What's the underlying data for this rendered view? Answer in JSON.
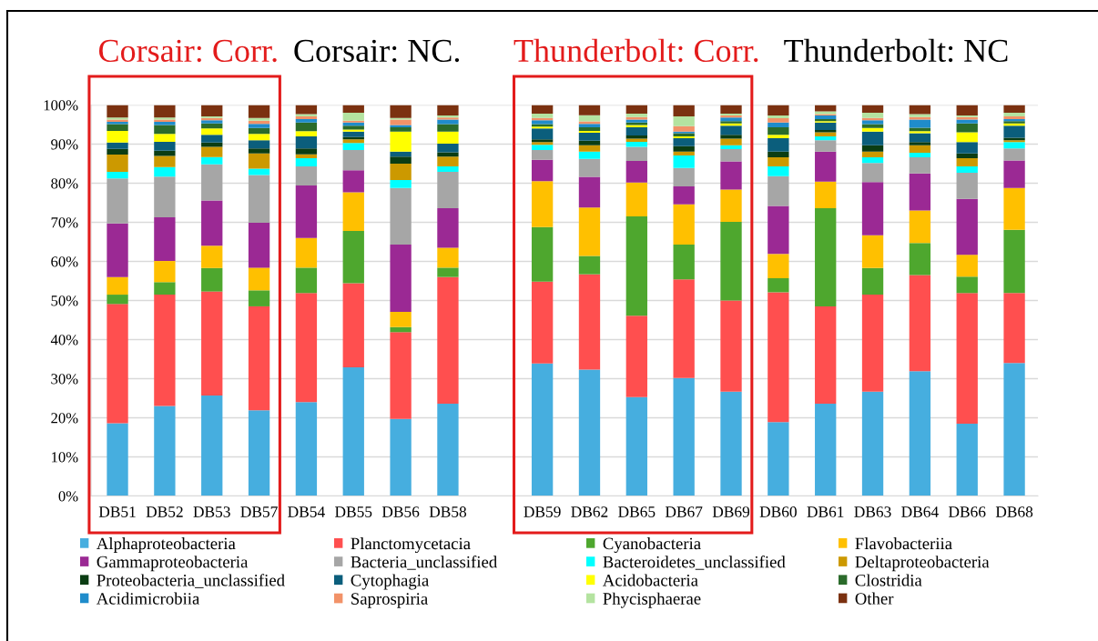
{
  "chart_data": {
    "type": "bar",
    "stacked": true,
    "categories": [
      "DB51",
      "DB52",
      "DB53",
      "DB57",
      "DB54",
      "DB55",
      "DB56",
      "DB58",
      null,
      "DB59",
      "DB62",
      "DB65",
      "DB67",
      "DB69",
      "DB60",
      "DB61",
      "DB63",
      "DB64",
      "DB66",
      "DB68"
    ],
    "series": [
      {
        "name": "Alphaproteobacteria",
        "color": "#46aedf",
        "values": [
          18.6,
          23.0,
          25.7,
          21.9,
          24.0,
          32.9,
          19.7,
          23.6,
          null,
          33.9,
          32.3,
          25.3,
          30.2,
          26.7,
          18.9,
          23.6,
          26.7,
          31.9,
          18.5,
          34.0
        ]
      },
      {
        "name": "Planctomycetacia",
        "color": "#ff4f4f",
        "values": [
          30.5,
          28.5,
          26.6,
          26.6,
          27.9,
          21.5,
          22.2,
          32.4,
          null,
          20.9,
          24.4,
          20.8,
          25.2,
          23.3,
          33.2,
          24.9,
          24.8,
          24.6,
          33.4,
          17.9
        ]
      },
      {
        "name": "Cyanobacteria",
        "color": "#4ea72e",
        "values": [
          2.4,
          3.2,
          6.0,
          4.1,
          6.5,
          13.4,
          1.3,
          2.4,
          null,
          14.0,
          4.7,
          25.4,
          8.9,
          20.1,
          3.6,
          25.1,
          6.8,
          8.2,
          4.2,
          16.2
        ]
      },
      {
        "name": "Flavobacteriia",
        "color": "#ffc000",
        "values": [
          4.5,
          5.4,
          5.7,
          5.8,
          7.6,
          9.9,
          3.9,
          5.1,
          null,
          11.7,
          12.4,
          8.7,
          10.3,
          8.3,
          6.2,
          6.8,
          8.4,
          8.3,
          5.6,
          10.7
        ]
      },
      {
        "name": "Gammaproteobacteria",
        "color": "#9b2994",
        "values": [
          13.7,
          11.2,
          11.6,
          11.5,
          13.4,
          5.6,
          17.2,
          10.1,
          null,
          5.5,
          7.8,
          5.5,
          4.6,
          7.2,
          12.3,
          7.7,
          13.6,
          9.5,
          14.3,
          7.0
        ]
      },
      {
        "name": "Bacteria_unclassified",
        "color": "#a6a6a6",
        "values": [
          11.5,
          10.4,
          9.2,
          12.2,
          4.9,
          5.2,
          14.5,
          9.3,
          null,
          2.5,
          4.6,
          3.6,
          4.7,
          3.1,
          7.6,
          2.9,
          4.9,
          4.1,
          6.7,
          3.1
        ]
      },
      {
        "name": "Bacteroidetes_unclassified",
        "color": "#00ffff",
        "values": [
          1.7,
          2.4,
          1.9,
          1.6,
          2.1,
          1.8,
          2.0,
          1.4,
          null,
          1.3,
          1.9,
          1.3,
          3.2,
          1.0,
          2.5,
          1.0,
          1.4,
          1.2,
          1.6,
          1.6
        ]
      },
      {
        "name": "Deltaproteobacteria",
        "color": "#cc9900",
        "values": [
          4.4,
          2.9,
          2.6,
          3.9,
          1.0,
          0.9,
          4.2,
          2.5,
          null,
          0.7,
          1.6,
          0.8,
          1.0,
          1.7,
          2.3,
          1.0,
          1.5,
          1.9,
          2.1,
          0.5
        ]
      },
      {
        "name": "Proteobacteria_unclassified",
        "color": "#0b3d13",
        "values": [
          1.5,
          1.3,
          1.1,
          1.3,
          1.5,
          0.6,
          1.8,
          1.1,
          null,
          0.7,
          1.2,
          0.8,
          1.4,
          1.0,
          1.5,
          0.6,
          1.6,
          0.8,
          1.2,
          0.6
        ]
      },
      {
        "name": "Cytophagia",
        "color": "#0b5e7c",
        "values": [
          1.6,
          2.3,
          2.0,
          2.1,
          3.1,
          1.4,
          1.3,
          2.2,
          null,
          2.8,
          2.0,
          2.1,
          2.0,
          2.3,
          3.4,
          1.9,
          3.5,
          2.3,
          2.9,
          3.1
        ]
      },
      {
        "name": "Acidobacteria",
        "color": "#ffff00",
        "values": [
          3.0,
          2.0,
          1.6,
          1.6,
          1.3,
          0.5,
          5.1,
          3.1,
          null,
          0.5,
          0.5,
          0.6,
          0.5,
          0.6,
          0.9,
          0.4,
          0.9,
          0.5,
          2.5,
          0.6
        ]
      },
      {
        "name": "Clostridia",
        "color": "#2b6b2b",
        "values": [
          1.7,
          2.3,
          1.3,
          1.5,
          2.2,
          1.0,
          1.1,
          1.9,
          null,
          0.6,
          0.9,
          0.6,
          0.8,
          0.6,
          1.9,
          0.5,
          1.0,
          0.9,
          2.3,
          0.6
        ]
      },
      {
        "name": "Acidimicrobiia",
        "color": "#1f8ccb",
        "values": [
          0.6,
          0.8,
          0.8,
          1.1,
          0.9,
          0.8,
          0.6,
          1.2,
          null,
          1.0,
          0.9,
          0.8,
          0.4,
          0.9,
          1.2,
          0.9,
          1.0,
          2.1,
          1.0,
          0.5
        ]
      },
      {
        "name": "Saprospiria",
        "color": "#f29268",
        "values": [
          0.6,
          0.6,
          0.6,
          0.8,
          0.7,
          0.5,
          1.4,
          0.5,
          null,
          0.6,
          0.6,
          0.6,
          1.4,
          0.5,
          1.1,
          0.4,
          0.6,
          0.6,
          0.6,
          0.7
        ]
      },
      {
        "name": "Phycisphaerae",
        "color": "#b4e3a0",
        "values": [
          0.5,
          0.5,
          0.4,
          0.7,
          0.6,
          2.0,
          0.4,
          0.5,
          null,
          1.1,
          1.6,
          0.9,
          2.5,
          0.5,
          0.7,
          0.7,
          1.3,
          0.8,
          0.4,
          0.9
        ]
      },
      {
        "name": "Other",
        "color": "#7b3110",
        "values": [
          3.2,
          3.2,
          2.9,
          3.3,
          2.3,
          2.0,
          3.3,
          2.7,
          null,
          2.2,
          2.6,
          2.2,
          2.9,
          2.2,
          2.7,
          1.6,
          2.0,
          2.3,
          2.7,
          2.0
        ]
      }
    ],
    "ylim": [
      0,
      100
    ],
    "yticks": [
      {
        "value": 0,
        "label": "0%"
      },
      {
        "value": 10,
        "label": "10%"
      },
      {
        "value": 20,
        "label": "20%"
      },
      {
        "value": 30,
        "label": "30%"
      },
      {
        "value": 40,
        "label": "40%"
      },
      {
        "value": 50,
        "label": "50%"
      },
      {
        "value": 60,
        "label": "60%"
      },
      {
        "value": 70,
        "label": "70%"
      },
      {
        "value": 80,
        "label": "80%"
      },
      {
        "value": 90,
        "label": "90%"
      },
      {
        "value": 100,
        "label": "100%"
      }
    ],
    "grid": "y",
    "legend": "bottom",
    "annotations": [
      "Corsair: Corr.",
      "Corsair: NC.",
      "Thunderbolt: Corr.",
      "Thunderbolt: NC"
    ]
  }
}
